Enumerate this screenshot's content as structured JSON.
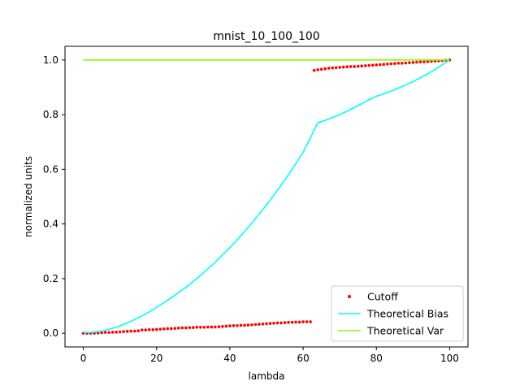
{
  "chart_data": {
    "type": "line",
    "title": "mnist_10_100_100",
    "xlabel": "lambda",
    "ylabel": "normalized units",
    "xlim": [
      -5,
      105
    ],
    "ylim": [
      -0.05,
      1.05
    ],
    "xticks": [
      0,
      20,
      40,
      60,
      80,
      100
    ],
    "yticks": [
      0.0,
      0.2,
      0.4,
      0.6,
      0.8,
      1.0
    ],
    "xtick_labels": [
      "0",
      "20",
      "40",
      "60",
      "80",
      "100"
    ],
    "ytick_labels": [
      "0.0",
      "0.2",
      "0.4",
      "0.6",
      "0.8",
      "1.0"
    ],
    "grid": false,
    "legend_position": "lower-right",
    "series": [
      {
        "name": "Cutoff",
        "kind": "scatter",
        "color": "#ff0000",
        "x": [
          0,
          1,
          2,
          3,
          4,
          5,
          6,
          7,
          8,
          9,
          10,
          11,
          12,
          13,
          14,
          15,
          16,
          17,
          18,
          19,
          20,
          21,
          22,
          23,
          24,
          25,
          26,
          27,
          28,
          29,
          30,
          31,
          32,
          33,
          34,
          35,
          36,
          37,
          38,
          39,
          40,
          41,
          42,
          43,
          44,
          45,
          46,
          47,
          48,
          49,
          50,
          51,
          52,
          53,
          54,
          55,
          56,
          57,
          58,
          59,
          60,
          61,
          62,
          63,
          64,
          65,
          66,
          67,
          68,
          69,
          70,
          71,
          72,
          73,
          74,
          75,
          76,
          77,
          78,
          79,
          80,
          81,
          82,
          83,
          84,
          85,
          86,
          87,
          88,
          89,
          90,
          91,
          92,
          93,
          94,
          95,
          96,
          97,
          98,
          99,
          100
        ],
        "y": [
          0.0,
          0.0,
          0.0,
          0.0,
          0.001,
          0.002,
          0.003,
          0.003,
          0.004,
          0.004,
          0.005,
          0.006,
          0.007,
          0.008,
          0.008,
          0.009,
          0.012,
          0.012,
          0.013,
          0.013,
          0.014,
          0.015,
          0.016,
          0.017,
          0.017,
          0.018,
          0.019,
          0.02,
          0.02,
          0.021,
          0.021,
          0.022,
          0.022,
          0.022,
          0.023,
          0.023,
          0.023,
          0.024,
          0.025,
          0.026,
          0.027,
          0.028,
          0.028,
          0.029,
          0.029,
          0.03,
          0.031,
          0.032,
          0.033,
          0.034,
          0.035,
          0.036,
          0.037,
          0.038,
          0.038,
          0.039,
          0.04,
          0.04,
          0.041,
          0.041,
          0.042,
          0.042,
          0.042,
          0.962,
          0.964,
          0.966,
          0.968,
          0.97,
          0.971,
          0.972,
          0.973,
          0.974,
          0.975,
          0.976,
          0.976,
          0.977,
          0.978,
          0.979,
          0.98,
          0.981,
          0.982,
          0.983,
          0.984,
          0.985,
          0.986,
          0.987,
          0.988,
          0.988,
          0.989,
          0.99,
          0.991,
          0.992,
          0.993,
          0.993,
          0.994,
          0.995,
          0.996,
          0.997,
          0.998,
          0.999,
          1.0
        ]
      },
      {
        "name": "Theoretical Bias",
        "kind": "line",
        "color": "#00ffff",
        "x": [
          0,
          2,
          4,
          6,
          8,
          10,
          12,
          14,
          16,
          18,
          20,
          22,
          24,
          26,
          28,
          30,
          32,
          34,
          36,
          38,
          40,
          42,
          44,
          46,
          48,
          50,
          52,
          54,
          56,
          58,
          60,
          62,
          64,
          66,
          68,
          70,
          72,
          74,
          76,
          78,
          80,
          82,
          84,
          86,
          88,
          90,
          92,
          94,
          96,
          98,
          100
        ],
        "y": [
          0.003,
          0.003,
          0.006,
          0.011,
          0.018,
          0.027,
          0.038,
          0.05,
          0.064,
          0.078,
          0.095,
          0.112,
          0.13,
          0.149,
          0.168,
          0.19,
          0.212,
          0.236,
          0.26,
          0.287,
          0.314,
          0.342,
          0.372,
          0.403,
          0.436,
          0.47,
          0.505,
          0.542,
          0.58,
          0.621,
          0.662,
          0.716,
          0.77,
          0.779,
          0.789,
          0.8,
          0.813,
          0.826,
          0.84,
          0.855,
          0.867,
          0.876,
          0.886,
          0.897,
          0.909,
          0.921,
          0.935,
          0.95,
          0.965,
          0.983,
          1.0
        ]
      },
      {
        "name": "Theoretical Var",
        "kind": "line",
        "color": "#7fff00",
        "x": [
          0,
          100
        ],
        "y": [
          1.0,
          1.0
        ]
      }
    ]
  }
}
